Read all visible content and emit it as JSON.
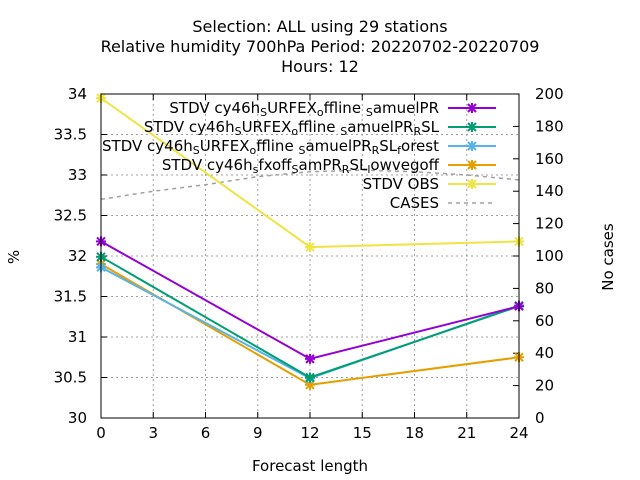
{
  "chart_data": {
    "type": "line",
    "title_lines": [
      "Selection: ALL using    29 stations",
      "Relative humidity 700hPa    Period: 20220702-20220709",
      "Hours:  12"
    ],
    "xlabel": "Forecast length",
    "ylabel": "%",
    "y2label": "No cases",
    "x_ticks": [
      0,
      3,
      6,
      9,
      12,
      15,
      18,
      21,
      24
    ],
    "y_ticks": [
      "30",
      "30.5",
      "31",
      "31.5",
      "32",
      "32.5",
      "33",
      "33.5",
      "34"
    ],
    "y2_ticks": [
      0,
      20,
      40,
      60,
      80,
      100,
      120,
      140,
      160,
      180,
      200
    ],
    "xlim": [
      0,
      24
    ],
    "ylim": [
      30,
      34
    ],
    "y2lim": [
      0,
      200
    ],
    "grid": true,
    "legend_position": "top-right",
    "series": [
      {
        "name_parts": [
          [
            "STDV cy46h",
            ""
          ],
          [
            "S",
            "sub"
          ],
          [
            "URFEX",
            ""
          ],
          [
            "o",
            "sub"
          ],
          [
            "ffline ",
            ""
          ],
          [
            "S",
            "sub"
          ],
          [
            "amuelPR",
            ""
          ]
        ],
        "color": "#9400d3",
        "marker": "x-star",
        "x": [
          0,
          12,
          24
        ],
        "y": [
          32.18,
          30.73,
          31.38
        ]
      },
      {
        "name_parts": [
          [
            "STDV cy46h",
            ""
          ],
          [
            "S",
            "sub"
          ],
          [
            "URFEX",
            ""
          ],
          [
            "o",
            "sub"
          ],
          [
            "ffline ",
            ""
          ],
          [
            "S",
            "sub"
          ],
          [
            "amuelPR",
            ""
          ],
          [
            "R",
            "sub"
          ],
          [
            "SL",
            ""
          ]
        ],
        "color": "#009e73",
        "marker": "x-star",
        "x": [
          0,
          12,
          24
        ],
        "y": [
          31.99,
          30.5,
          31.38
        ]
      },
      {
        "name_parts": [
          [
            "STDV cy46h",
            ""
          ],
          [
            "S",
            "sub"
          ],
          [
            "URFEX",
            ""
          ],
          [
            "o",
            "sub"
          ],
          [
            "ffline ",
            ""
          ],
          [
            "S",
            "sub"
          ],
          [
            "amuelPR",
            ""
          ],
          [
            "R",
            "sub"
          ],
          [
            "SL",
            ""
          ],
          [
            "f",
            "sub"
          ],
          [
            "orest",
            ""
          ]
        ],
        "color": "#56b4e9",
        "marker": "x-star",
        "x": [
          0,
          12,
          24
        ],
        "y": [
          31.86,
          30.49,
          31.39
        ]
      },
      {
        "name_parts": [
          [
            "STDV cy46h",
            ""
          ],
          [
            "s",
            "sub"
          ],
          [
            "fxoff",
            ""
          ],
          [
            "S",
            "sub"
          ],
          [
            "amPR",
            ""
          ],
          [
            "R",
            "sub"
          ],
          [
            "SL",
            ""
          ],
          [
            "l",
            "sub"
          ],
          [
            "owvegoff",
            ""
          ]
        ],
        "color": "#e69f00",
        "marker": "x-star",
        "x": [
          0,
          12,
          24
        ],
        "y": [
          31.9,
          30.41,
          30.75
        ]
      },
      {
        "name_parts": [
          [
            "STDV OBS",
            ""
          ]
        ],
        "color": "#f0e442",
        "marker": "x-star",
        "x": [
          0,
          12,
          24
        ],
        "y": [
          33.95,
          32.11,
          32.18
        ]
      }
    ],
    "cases": {
      "name": "CASES",
      "color": "#a0a0a0",
      "axis": "y2",
      "x": [
        0,
        3,
        6,
        9,
        12,
        15,
        18,
        21,
        24
      ],
      "y": [
        135,
        140,
        144,
        149,
        152,
        153,
        152,
        150,
        147
      ]
    }
  }
}
